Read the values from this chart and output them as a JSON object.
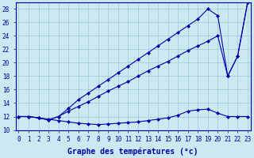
{
  "xlabel": "Graphe des températures (°c)",
  "x": [
    0,
    1,
    2,
    3,
    4,
    5,
    6,
    7,
    8,
    9,
    10,
    11,
    12,
    13,
    14,
    15,
    16,
    17,
    18,
    19,
    20,
    21,
    22,
    23
  ],
  "line1": [
    12.0,
    12.0,
    11.8,
    11.6,
    11.4,
    11.2,
    11.0,
    10.9,
    10.8,
    10.9,
    11.0,
    11.1,
    11.2,
    11.4,
    11.6,
    11.8,
    12.2,
    12.8,
    13.0,
    13.1,
    12.5,
    12.0,
    12.0,
    12.0
  ],
  "line2": [
    12.0,
    12.0,
    11.8,
    11.5,
    12.0,
    12.8,
    13.5,
    14.2,
    15.0,
    15.8,
    16.5,
    17.2,
    18.0,
    18.8,
    19.5,
    20.2,
    21.0,
    21.8,
    22.5,
    23.2,
    24.0,
    18.0,
    21.0,
    29.0
  ],
  "line3": [
    12.0,
    12.0,
    11.8,
    11.5,
    12.0,
    13.2,
    14.5,
    15.5,
    16.5,
    17.5,
    18.5,
    19.5,
    20.5,
    21.5,
    22.5,
    23.5,
    24.5,
    25.5,
    26.5,
    28.0,
    27.0,
    18.0,
    21.0,
    29.0
  ],
  "ylim": [
    10,
    29
  ],
  "xlim": [
    0,
    23
  ],
  "bg_color": "#cce8f0",
  "line_color": "#0000aa",
  "grid_color": "#99ccdd",
  "fontsize_label": 7,
  "fontsize_tick": 5.5
}
